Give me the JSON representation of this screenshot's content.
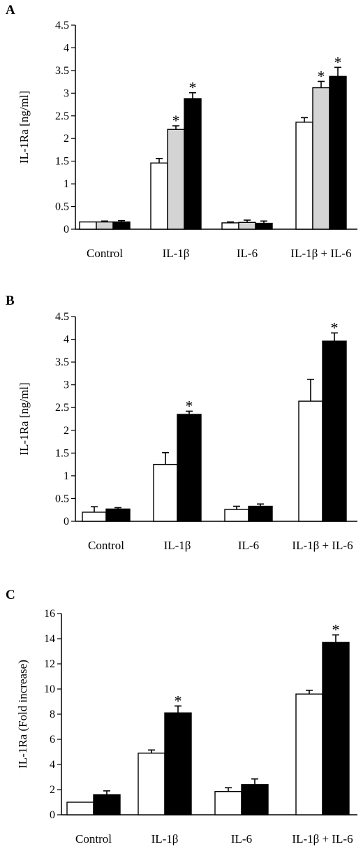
{
  "chart_data": [
    {
      "type": "bar",
      "panel": "A",
      "ylabel": "IL-1Ra [ng/ml]",
      "ylim": [
        0,
        4.5
      ],
      "yticks": [
        "0",
        "0.5",
        "1",
        "1.5",
        "2",
        "2.5",
        "3",
        "3.5",
        "4",
        "4.5"
      ],
      "categories": [
        "Control",
        "IL-1β",
        "IL-6",
        "IL-1β + IL-6"
      ],
      "series": [
        {
          "color": "#ffffff",
          "values": [
            0.16,
            1.46,
            0.14,
            2.36
          ],
          "errors": [
            0.0,
            0.1,
            0.02,
            0.1
          ]
        },
        {
          "color": "#d4d4d4",
          "values": [
            0.16,
            2.2,
            0.15,
            3.12
          ],
          "errors": [
            0.02,
            0.08,
            0.05,
            0.14
          ]
        },
        {
          "color": "#000000",
          "values": [
            0.16,
            2.88,
            0.13,
            3.37
          ],
          "errors": [
            0.03,
            0.13,
            0.05,
            0.2
          ]
        }
      ],
      "significance": [
        [
          false,
          false,
          false
        ],
        [
          false,
          true,
          true
        ],
        [
          false,
          false,
          false
        ],
        [
          false,
          true,
          true
        ]
      ]
    },
    {
      "type": "bar",
      "panel": "B",
      "ylabel": "IL-1Ra [ng/ml]",
      "ylim": [
        0,
        4.5
      ],
      "yticks": [
        "0",
        "0.5",
        "1",
        "1.5",
        "2",
        "2.5",
        "3",
        "3.5",
        "4",
        "4.5"
      ],
      "categories": [
        "Control",
        "IL-1β",
        "IL-6",
        "IL-1β + IL-6"
      ],
      "series": [
        {
          "color": "#ffffff",
          "values": [
            0.2,
            1.25,
            0.26,
            2.64
          ],
          "errors": [
            0.12,
            0.26,
            0.07,
            0.48
          ]
        },
        {
          "color": "#000000",
          "values": [
            0.27,
            2.35,
            0.33,
            3.96
          ],
          "errors": [
            0.03,
            0.07,
            0.05,
            0.18
          ]
        }
      ],
      "significance": [
        [
          false,
          false
        ],
        [
          false,
          true
        ],
        [
          false,
          false
        ],
        [
          false,
          true
        ]
      ]
    },
    {
      "type": "bar",
      "panel": "C",
      "ylabel": "IL-1Ra (Fold increase)",
      "ylim": [
        0,
        16
      ],
      "yticks": [
        "0",
        "2",
        "4",
        "6",
        "8",
        "10",
        "12",
        "14",
        "16"
      ],
      "categories": [
        "Control",
        "IL-1β",
        "IL-6",
        "IL-1β + IL-6"
      ],
      "series": [
        {
          "color": "#ffffff",
          "values": [
            1.0,
            4.9,
            1.85,
            9.6
          ],
          "errors": [
            0.0,
            0.25,
            0.3,
            0.3
          ]
        },
        {
          "color": "#000000",
          "values": [
            1.6,
            8.1,
            2.4,
            13.7
          ],
          "errors": [
            0.3,
            0.55,
            0.45,
            0.6
          ]
        }
      ],
      "significance": [
        [
          false,
          false
        ],
        [
          false,
          true
        ],
        [
          false,
          false
        ],
        [
          false,
          true
        ]
      ]
    }
  ]
}
